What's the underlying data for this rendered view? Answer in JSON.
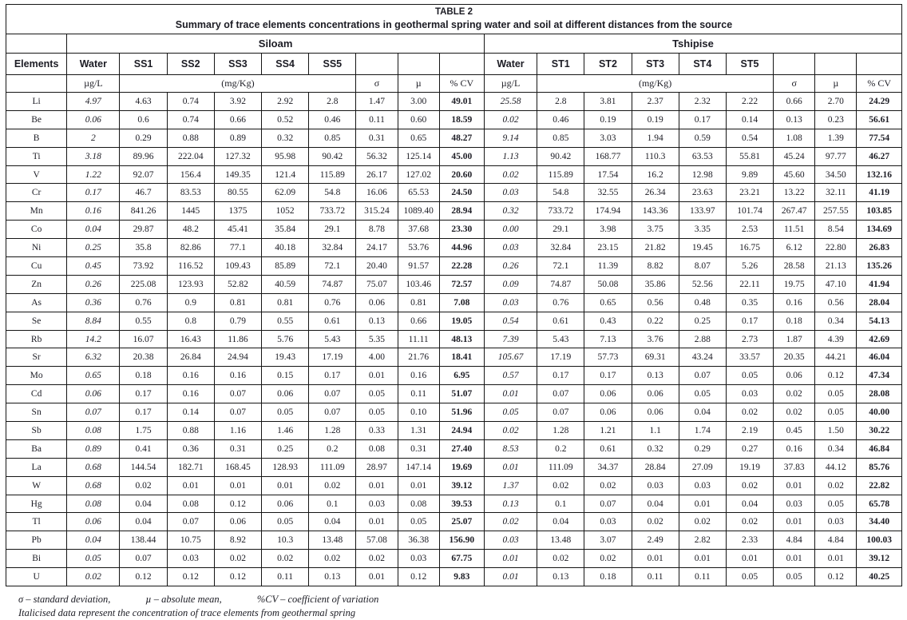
{
  "table": {
    "title_label": "TABLE 2",
    "subtitle": "Summary of trace elements concentrations in geothermal spring water and soil at different distances from the source",
    "groups": [
      "Siloam",
      "Tshipise"
    ],
    "header": {
      "elements_label": "Elements",
      "siloam_cols": [
        "Water",
        "SS1",
        "SS2",
        "SS3",
        "SS4",
        "SS5"
      ],
      "tshipise_cols": [
        "Water",
        "ST1",
        "ST2",
        "ST3",
        "ST4",
        "ST5"
      ],
      "units": {
        "water": "µg/L",
        "soil": "(mg/Kg)",
        "sigma": "σ",
        "mu": "µ",
        "cv": "% CV"
      }
    },
    "rows": [
      {
        "el": "Li",
        "siloam": [
          "4.97",
          "4.63",
          "0.74",
          "3.92",
          "2.92",
          "2.8",
          "1.47",
          "3.00",
          "49.01"
        ],
        "tshipise": [
          "25.58",
          "2.8",
          "3.81",
          "2.37",
          "2.32",
          "2.22",
          "0.66",
          "2.70",
          "24.29"
        ]
      },
      {
        "el": "Be",
        "siloam": [
          "0.06",
          "0.6",
          "0.74",
          "0.66",
          "0.52",
          "0.46",
          "0.11",
          "0.60",
          "18.59"
        ],
        "tshipise": [
          "0.02",
          "0.46",
          "0.19",
          "0.19",
          "0.17",
          "0.14",
          "0.13",
          "0.23",
          "56.61"
        ]
      },
      {
        "el": "B",
        "siloam": [
          "2",
          "0.29",
          "0.88",
          "0.89",
          "0.32",
          "0.85",
          "0.31",
          "0.65",
          "48.27"
        ],
        "tshipise": [
          "9.14",
          "0.85",
          "3.03",
          "1.94",
          "0.59",
          "0.54",
          "1.08",
          "1.39",
          "77.54"
        ]
      },
      {
        "el": "Ti",
        "siloam": [
          "3.18",
          "89.96",
          "222.04",
          "127.32",
          "95.98",
          "90.42",
          "56.32",
          "125.14",
          "45.00"
        ],
        "tshipise": [
          "1.13",
          "90.42",
          "168.77",
          "110.3",
          "63.53",
          "55.81",
          "45.24",
          "97.77",
          "46.27"
        ]
      },
      {
        "el": "V",
        "siloam": [
          "1.22",
          "92.07",
          "156.4",
          "149.35",
          "121.4",
          "115.89",
          "26.17",
          "127.02",
          "20.60"
        ],
        "tshipise": [
          "0.02",
          "115.89",
          "17.54",
          "16.2",
          "12.98",
          "9.89",
          "45.60",
          "34.50",
          "132.16"
        ]
      },
      {
        "el": "Cr",
        "siloam": [
          "0.17",
          "46.7",
          "83.53",
          "80.55",
          "62.09",
          "54.8",
          "16.06",
          "65.53",
          "24.50"
        ],
        "tshipise": [
          "0.03",
          "54.8",
          "32.55",
          "26.34",
          "23.63",
          "23.21",
          "13.22",
          "32.11",
          "41.19"
        ]
      },
      {
        "el": "Mn",
        "siloam": [
          "0.16",
          "841.26",
          "1445",
          "1375",
          "1052",
          "733.72",
          "315.24",
          "1089.40",
          "28.94"
        ],
        "tshipise": [
          "0.32",
          "733.72",
          "174.94",
          "143.36",
          "133.97",
          "101.74",
          "267.47",
          "257.55",
          "103.85"
        ]
      },
      {
        "el": "Co",
        "siloam": [
          "0.04",
          "29.87",
          "48.2",
          "45.41",
          "35.84",
          "29.1",
          "8.78",
          "37.68",
          "23.30"
        ],
        "tshipise": [
          "0.00",
          "29.1",
          "3.98",
          "3.75",
          "3.35",
          "2.53",
          "11.51",
          "8.54",
          "134.69"
        ]
      },
      {
        "el": "Ni",
        "siloam": [
          "0.25",
          "35.8",
          "82.86",
          "77.1",
          "40.18",
          "32.84",
          "24.17",
          "53.76",
          "44.96"
        ],
        "tshipise": [
          "0.03",
          "32.84",
          "23.15",
          "21.82",
          "19.45",
          "16.75",
          "6.12",
          "22.80",
          "26.83"
        ]
      },
      {
        "el": "Cu",
        "siloam": [
          "0.45",
          "73.92",
          "116.52",
          "109.43",
          "85.89",
          "72.1",
          "20.40",
          "91.57",
          "22.28"
        ],
        "tshipise": [
          "0.26",
          "72.1",
          "11.39",
          "8.82",
          "8.07",
          "5.26",
          "28.58",
          "21.13",
          "135.26"
        ]
      },
      {
        "el": "Zn",
        "siloam": [
          "0.26",
          "225.08",
          "123.93",
          "52.82",
          "40.59",
          "74.87",
          "75.07",
          "103.46",
          "72.57"
        ],
        "tshipise": [
          "0.09",
          "74.87",
          "50.08",
          "35.86",
          "52.56",
          "22.11",
          "19.75",
          "47.10",
          "41.94"
        ]
      },
      {
        "el": "As",
        "siloam": [
          "0.36",
          "0.76",
          "0.9",
          "0.81",
          "0.81",
          "0.76",
          "0.06",
          "0.81",
          "7.08"
        ],
        "tshipise": [
          "0.03",
          "0.76",
          "0.65",
          "0.56",
          "0.48",
          "0.35",
          "0.16",
          "0.56",
          "28.04"
        ]
      },
      {
        "el": "Se",
        "siloam": [
          "8.84",
          "0.55",
          "0.8",
          "0.79",
          "0.55",
          "0.61",
          "0.13",
          "0.66",
          "19.05"
        ],
        "tshipise": [
          "0.54",
          "0.61",
          "0.43",
          "0.22",
          "0.25",
          "0.17",
          "0.18",
          "0.34",
          "54.13"
        ]
      },
      {
        "el": "Rb",
        "siloam": [
          "14.2",
          "16.07",
          "16.43",
          "11.86",
          "5.76",
          "5.43",
          "5.35",
          "11.11",
          "48.13"
        ],
        "tshipise": [
          "7.39",
          "5.43",
          "7.13",
          "3.76",
          "2.88",
          "2.73",
          "1.87",
          "4.39",
          "42.69"
        ]
      },
      {
        "el": "Sr",
        "siloam": [
          "6.32",
          "20.38",
          "26.84",
          "24.94",
          "19.43",
          "17.19",
          "4.00",
          "21.76",
          "18.41"
        ],
        "tshipise": [
          "105.67",
          "17.19",
          "57.73",
          "69.31",
          "43.24",
          "33.57",
          "20.35",
          "44.21",
          "46.04"
        ]
      },
      {
        "el": "Mo",
        "siloam": [
          "0.65",
          "0.18",
          "0.16",
          "0.16",
          "0.15",
          "0.17",
          "0.01",
          "0.16",
          "6.95"
        ],
        "tshipise": [
          "0.57",
          "0.17",
          "0.17",
          "0.13",
          "0.07",
          "0.05",
          "0.06",
          "0.12",
          "47.34"
        ]
      },
      {
        "el": "Cd",
        "siloam": [
          "0.06",
          "0.17",
          "0.16",
          "0.07",
          "0.06",
          "0.07",
          "0.05",
          "0.11",
          "51.07"
        ],
        "tshipise": [
          "0.01",
          "0.07",
          "0.06",
          "0.06",
          "0.05",
          "0.03",
          "0.02",
          "0.05",
          "28.08"
        ]
      },
      {
        "el": "Sn",
        "siloam": [
          "0.07",
          "0.17",
          "0.14",
          "0.07",
          "0.05",
          "0.07",
          "0.05",
          "0.10",
          "51.96"
        ],
        "tshipise": [
          "0.05",
          "0.07",
          "0.06",
          "0.06",
          "0.04",
          "0.02",
          "0.02",
          "0.05",
          "40.00"
        ]
      },
      {
        "el": "Sb",
        "siloam": [
          "0.08",
          "1.75",
          "0.88",
          "1.16",
          "1.46",
          "1.28",
          "0.33",
          "1.31",
          "24.94"
        ],
        "tshipise": [
          "0.02",
          "1.28",
          "1.21",
          "1.1",
          "1.74",
          "2.19",
          "0.45",
          "1.50",
          "30.22"
        ]
      },
      {
        "el": "Ba",
        "siloam": [
          "0.89",
          "0.41",
          "0.36",
          "0.31",
          "0.25",
          "0.2",
          "0.08",
          "0.31",
          "27.40"
        ],
        "tshipise": [
          "8.53",
          "0.2",
          "0.61",
          "0.32",
          "0.29",
          "0.27",
          "0.16",
          "0.34",
          "46.84"
        ]
      },
      {
        "el": "La",
        "siloam": [
          "0.68",
          "144.54",
          "182.71",
          "168.45",
          "128.93",
          "111.09",
          "28.97",
          "147.14",
          "19.69"
        ],
        "tshipise": [
          "0.01",
          "111.09",
          "34.37",
          "28.84",
          "27.09",
          "19.19",
          "37.83",
          "44.12",
          "85.76"
        ]
      },
      {
        "el": "W",
        "siloam": [
          "0.68",
          "0.02",
          "0.01",
          "0.01",
          "0.01",
          "0.02",
          "0.01",
          "0.01",
          "39.12"
        ],
        "tshipise": [
          "1.37",
          "0.02",
          "0.02",
          "0.03",
          "0.03",
          "0.02",
          "0.01",
          "0.02",
          "22.82"
        ]
      },
      {
        "el": "Hg",
        "siloam": [
          "0.08",
          "0.04",
          "0.08",
          "0.12",
          "0.06",
          "0.1",
          "0.03",
          "0.08",
          "39.53"
        ],
        "tshipise": [
          "0.13",
          "0.1",
          "0.07",
          "0.04",
          "0.01",
          "0.04",
          "0.03",
          "0.05",
          "65.78"
        ]
      },
      {
        "el": "Tl",
        "siloam": [
          "0.06",
          "0.04",
          "0.07",
          "0.06",
          "0.05",
          "0.04",
          "0.01",
          "0.05",
          "25.07"
        ],
        "tshipise": [
          "0.02",
          "0.04",
          "0.03",
          "0.02",
          "0.02",
          "0.02",
          "0.01",
          "0.03",
          "34.40"
        ]
      },
      {
        "el": "Pb",
        "siloam": [
          "0.04",
          "138.44",
          "10.75",
          "8.92",
          "10.3",
          "13.48",
          "57.08",
          "36.38",
          "156.90"
        ],
        "tshipise": [
          "0.03",
          "13.48",
          "3.07",
          "2.49",
          "2.82",
          "2.33",
          "4.84",
          "4.84",
          "100.03"
        ]
      },
      {
        "el": "Bi",
        "siloam": [
          "0.05",
          "0.07",
          "0.03",
          "0.02",
          "0.02",
          "0.02",
          "0.02",
          "0.03",
          "67.75"
        ],
        "tshipise": [
          "0.01",
          "0.02",
          "0.02",
          "0.01",
          "0.01",
          "0.01",
          "0.01",
          "0.01",
          "39.12"
        ]
      },
      {
        "el": "U",
        "siloam": [
          "0.02",
          "0.12",
          "0.12",
          "0.12",
          "0.11",
          "0.13",
          "0.01",
          "0.12",
          "9.83"
        ],
        "tshipise": [
          "0.01",
          "0.13",
          "0.18",
          "0.11",
          "0.11",
          "0.05",
          "0.05",
          "0.12",
          "40.25"
        ]
      }
    ],
    "footnotes": {
      "sigma": "σ – standard deviation,",
      "mu": "µ – absolute mean,",
      "cv": "%CV – coefficient of variation",
      "italic_note": "Italicised data represent the concentration of trace elements from geothermal spring"
    }
  }
}
